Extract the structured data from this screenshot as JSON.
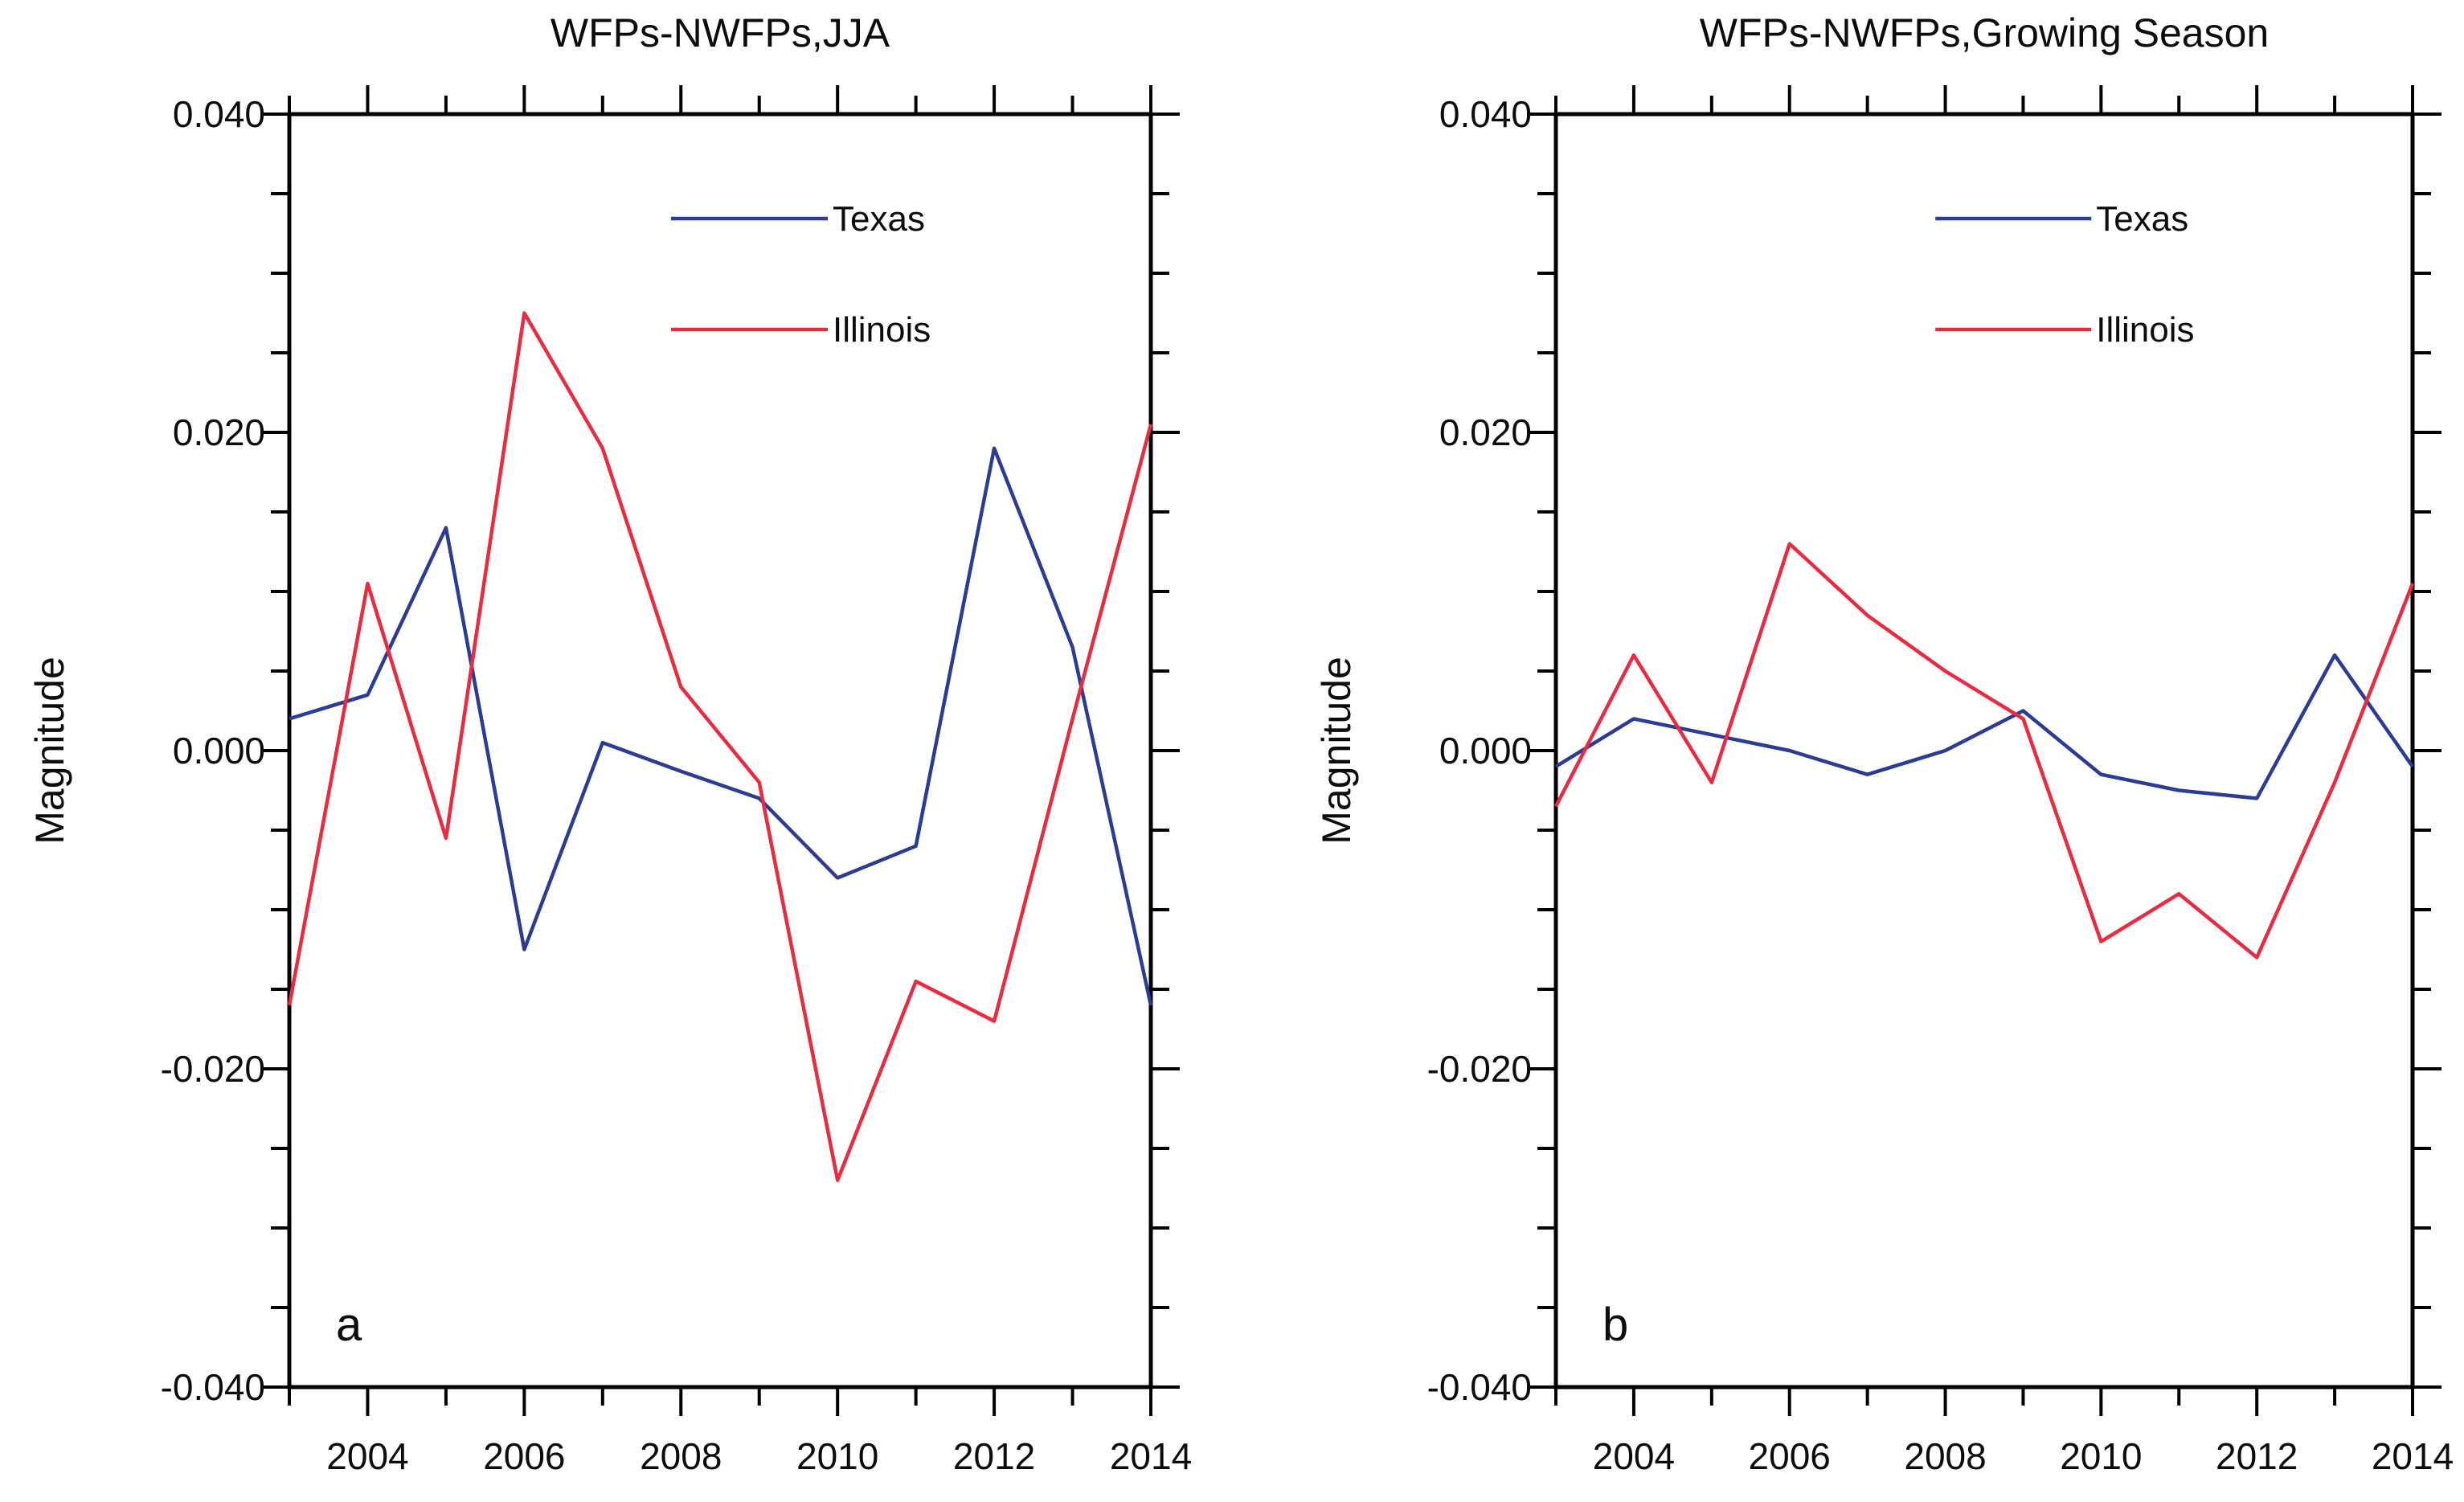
{
  "figure": {
    "background_color": "#ffffff",
    "axis_color": "#000000",
    "text_color": "#0c0c0c"
  },
  "chart_data": [
    {
      "type": "line",
      "panel_label": "a",
      "title": "WFPs-NWFPs,JJA",
      "ylabel": "Magnitude",
      "xlabel": "",
      "x": [
        2003,
        2004,
        2005,
        2006,
        2007,
        2008,
        2009,
        2010,
        2011,
        2012,
        2013,
        2014
      ],
      "xlim": [
        2003,
        2014
      ],
      "ylim": [
        -0.04,
        0.04
      ],
      "xtick_labels": [
        "2004",
        "2006",
        "2008",
        "2010",
        "2012",
        "2014"
      ],
      "ytick_labels": [
        "0.040",
        "0.020",
        "0.000",
        "-0.020",
        "-0.040"
      ],
      "y_major_step": 0.02,
      "y_minor_step": 0.005,
      "x_major_step": 2,
      "x_minor_step": 1,
      "grid": false,
      "legend_position": "upper middle inside",
      "series": [
        {
          "name": "Texas",
          "color": "#2A3C96",
          "values": [
            0.002,
            0.0035,
            0.014,
            -0.0125,
            0.0005,
            -0.0013,
            -0.003,
            -0.008,
            -0.006,
            0.019,
            0.0065,
            -0.016
          ]
        },
        {
          "name": "Illinois",
          "color": "#EB2A40",
          "values": [
            -0.016,
            0.0105,
            -0.0055,
            0.0275,
            0.019,
            0.004,
            -0.002,
            -0.027,
            -0.0145,
            -0.017,
            0.002,
            0.0205
          ]
        }
      ]
    },
    {
      "type": "line",
      "panel_label": "b",
      "title": "WFPs-NWFPs,Growing Season",
      "ylabel": "Magnitude",
      "xlabel": "",
      "x": [
        2003,
        2004,
        2005,
        2006,
        2007,
        2008,
        2009,
        2010,
        2011,
        2012,
        2013,
        2014
      ],
      "xlim": [
        2003,
        2014
      ],
      "ylim": [
        -0.04,
        0.04
      ],
      "xtick_labels": [
        "2004",
        "2006",
        "2008",
        "2010",
        "2012",
        "2014"
      ],
      "ytick_labels": [
        "0.040",
        "0.020",
        "0.000",
        "-0.020",
        "-0.040"
      ],
      "y_major_step": 0.02,
      "y_minor_step": 0.005,
      "x_major_step": 2,
      "x_minor_step": 1,
      "grid": false,
      "legend_position": "upper middle inside",
      "series": [
        {
          "name": "Texas",
          "color": "#2A3C96",
          "values": [
            -0.001,
            0.002,
            0.001,
            0.0,
            -0.0015,
            0.0,
            0.0025,
            -0.0015,
            -0.0025,
            -0.003,
            0.006,
            -0.001
          ]
        },
        {
          "name": "Illinois",
          "color": "#EB2A40",
          "values": [
            -0.0035,
            0.006,
            -0.002,
            0.013,
            0.0085,
            0.005,
            0.002,
            -0.012,
            -0.009,
            -0.013,
            -0.002,
            0.0105
          ]
        }
      ]
    }
  ]
}
